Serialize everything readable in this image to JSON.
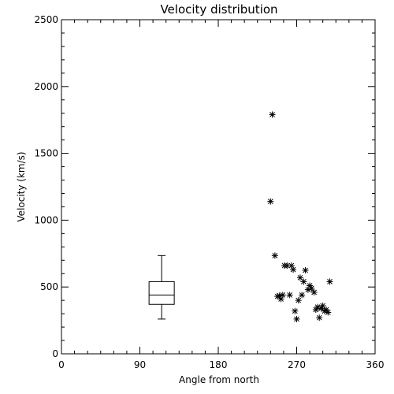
{
  "chart_data": {
    "type": "scatter",
    "title": "Velocity distribution",
    "xlabel": "Angle from north",
    "ylabel": "Velocity (km/s)",
    "xlim": [
      0,
      360
    ],
    "ylim": [
      0,
      2500
    ],
    "xticks": [
      0,
      90,
      180,
      270,
      360
    ],
    "xtick_labels": [
      "0",
      "90",
      "180",
      "270",
      "360"
    ],
    "yticks": [
      0,
      500,
      1000,
      1500,
      2000,
      2500
    ],
    "ytick_labels": [
      "0",
      "500",
      "1000",
      "1500",
      "2000",
      "2500"
    ],
    "grid": false,
    "series": [
      {
        "marker": "asterisk",
        "points": [
          [
            242,
            1790
          ],
          [
            240,
            1140
          ],
          [
            245,
            735
          ],
          [
            248,
            430
          ],
          [
            250,
            435
          ],
          [
            252,
            410
          ],
          [
            254,
            440
          ],
          [
            256,
            660
          ],
          [
            259,
            660
          ],
          [
            262,
            440
          ],
          [
            264,
            660
          ],
          [
            266,
            630
          ],
          [
            268,
            320
          ],
          [
            270,
            260
          ],
          [
            272,
            400
          ],
          [
            274,
            570
          ],
          [
            276,
            440
          ],
          [
            278,
            540
          ],
          [
            280,
            625
          ],
          [
            283,
            480
          ],
          [
            285,
            510
          ],
          [
            287,
            490
          ],
          [
            290,
            460
          ],
          [
            292,
            330
          ],
          [
            294,
            350
          ],
          [
            296,
            270
          ],
          [
            298,
            340
          ],
          [
            300,
            360
          ],
          [
            302,
            320
          ],
          [
            304,
            330
          ],
          [
            306,
            310
          ],
          [
            308,
            540
          ]
        ]
      }
    ],
    "boxplot": {
      "x": 115,
      "min": 260,
      "q1": 370,
      "median": 440,
      "q3": 540,
      "max": 735
    }
  }
}
